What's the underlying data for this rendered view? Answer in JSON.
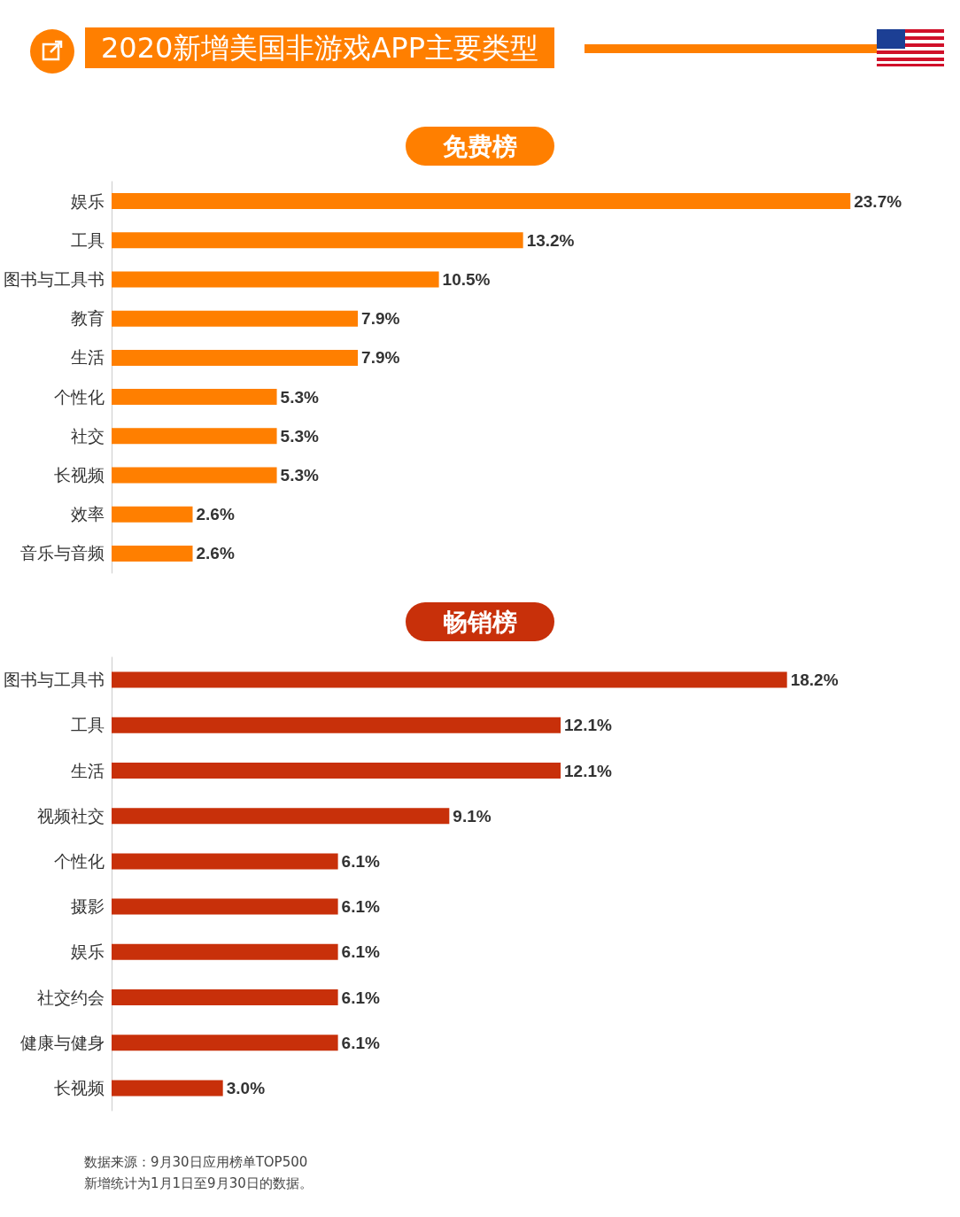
{
  "chart_data": [
    {
      "type": "bar",
      "orientation": "horizontal",
      "title": "2020新增美国非游戏APP主要类型",
      "subtitle": "免费榜",
      "tick_labels": "y",
      "categories": [
        "娱乐",
        "工具",
        "图书与工具书",
        "教育",
        "生活",
        "个性化",
        "社交",
        "长视频",
        "效率",
        "音乐与音频"
      ],
      "series": [
        {
          "color": "#ff7f00",
          "values": [
            23.7,
            13.2,
            10.5,
            7.9,
            7.9,
            5.3,
            5.3,
            5.3,
            2.6,
            2.6
          ],
          "value_labels": [
            "23.7%",
            "13.2%",
            "10.5%",
            "7.9%",
            "7.9%",
            "5.3%",
            "5.3%",
            "5.3%",
            "2.6%",
            "2.6%"
          ]
        }
      ]
    },
    {
      "type": "bar",
      "orientation": "horizontal",
      "title": "畅销榜",
      "tick_labels": "y",
      "categories": [
        "图书与工具书",
        "工具",
        "生活",
        "视频社交",
        "个性化",
        "摄影",
        "娱乐",
        "社交约会",
        "健康与健身",
        "长视频"
      ],
      "series": [
        {
          "color": "#c8300a",
          "values": [
            18.2,
            12.1,
            12.1,
            9.1,
            6.1,
            6.1,
            6.1,
            6.1,
            6.1,
            3.0
          ],
          "value_labels": [
            "18.2%",
            "12.1%",
            "12.1%",
            "9.1%",
            "6.1%",
            "6.1%",
            "6.1%",
            "6.1%",
            "6.1%",
            "3.0%"
          ]
        }
      ],
      "annotations": [
        "数据来源：9月30日应用榜单TOP500",
        "新增统计为1月1日至9月30日的数据。"
      ]
    }
  ]
}
